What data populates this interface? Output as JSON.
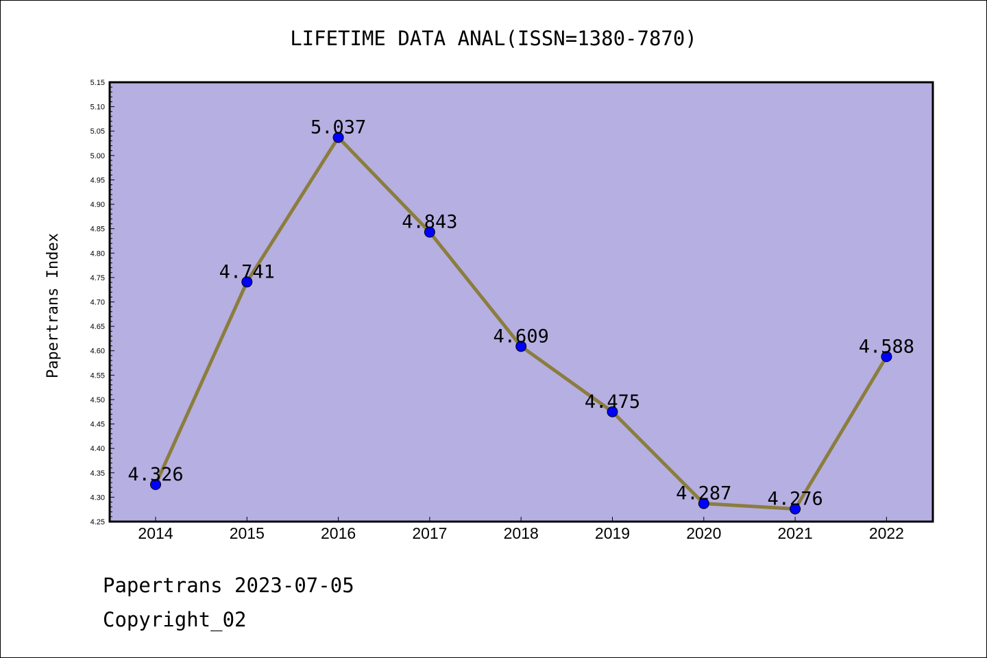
{
  "chart_data": {
    "type": "line",
    "title": "LIFETIME DATA ANAL(ISSN=1380-7870)",
    "xlabel": "",
    "ylabel": "Papertrans Index",
    "categories": [
      "2014",
      "2015",
      "2016",
      "2017",
      "2018",
      "2019",
      "2020",
      "2021",
      "2022"
    ],
    "values": [
      4.326,
      4.741,
      5.037,
      4.843,
      4.609,
      4.475,
      4.287,
      4.276,
      4.588
    ],
    "value_labels": [
      "4.326",
      "4.741",
      "5.037",
      "4.843",
      "4.609",
      "4.475",
      "4.287",
      "4.276",
      "4.588"
    ],
    "ylim": [
      4.25,
      5.15
    ],
    "yticks": [
      "4.25",
      "4.30",
      "4.35",
      "4.40",
      "4.45",
      "4.50",
      "4.55",
      "4.60",
      "4.65",
      "4.70",
      "4.75",
      "4.80",
      "4.85",
      "4.90",
      "4.95",
      "5.00",
      "5.05",
      "5.10",
      "5.15"
    ],
    "grid": false,
    "colors": {
      "plot_background": "#b5afe2",
      "line": "#8b7d3c",
      "marker": "#0000ff"
    }
  },
  "footer": {
    "line1": "Papertrans 2023-07-05",
    "line2": "Copyright_02"
  }
}
